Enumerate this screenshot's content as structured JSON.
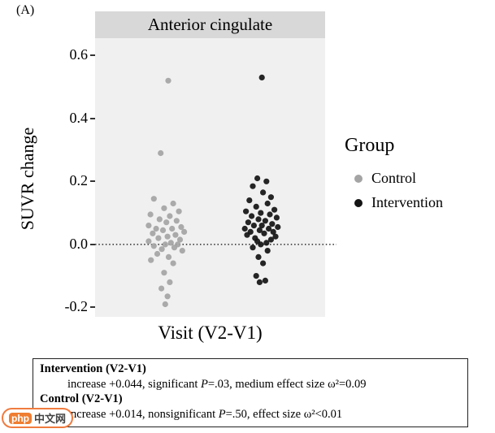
{
  "panel_label": "(A)",
  "chart_data": {
    "type": "scatter",
    "title": "Anterior cingulate",
    "xlabel": "Visit (V2-V1)",
    "ylabel": "SUVR change",
    "ylim": [
      -0.23,
      0.655
    ],
    "yticks": [
      0.6,
      0.4,
      0.2,
      0.0,
      -0.2
    ],
    "reference_line_y": 0,
    "grid": false,
    "legend": {
      "title": "Group",
      "position": "right",
      "entries": [
        {
          "label": "Control",
          "color": "#a4a4a4"
        },
        {
          "label": "Intervention",
          "color": "#141414"
        }
      ]
    },
    "series": [
      {
        "name": "Control",
        "color": "#a4a4a4",
        "x_frac": 0.31,
        "points": [
          [
            0.08,
            0.52
          ],
          [
            -0.25,
            0.29
          ],
          [
            -0.55,
            0.145
          ],
          [
            0.3,
            0.13
          ],
          [
            -0.1,
            0.115
          ],
          [
            0.55,
            0.105
          ],
          [
            -0.7,
            0.095
          ],
          [
            0.15,
            0.09
          ],
          [
            -0.3,
            0.08
          ],
          [
            0.45,
            0.075
          ],
          [
            0.0,
            0.07
          ],
          [
            -0.78,
            0.06
          ],
          [
            0.65,
            0.055
          ],
          [
            -0.45,
            0.05
          ],
          [
            0.25,
            0.05
          ],
          [
            -0.15,
            0.045
          ],
          [
            0.78,
            0.04
          ],
          [
            -0.6,
            0.035
          ],
          [
            0.4,
            0.03
          ],
          [
            0.05,
            0.025
          ],
          [
            -0.35,
            0.02
          ],
          [
            0.6,
            0.015
          ],
          [
            -0.78,
            0.01
          ],
          [
            0.2,
            0.005
          ],
          [
            -0.05,
            0.0
          ],
          [
            0.5,
            0.0
          ],
          [
            -0.55,
            -0.005
          ],
          [
            0.35,
            -0.01
          ],
          [
            -0.2,
            -0.015
          ],
          [
            0.7,
            -0.02
          ],
          [
            -0.4,
            -0.03
          ],
          [
            0.1,
            -0.04
          ],
          [
            -0.68,
            -0.05
          ],
          [
            0.3,
            -0.06
          ],
          [
            -0.1,
            -0.09
          ],
          [
            0.15,
            -0.12
          ],
          [
            -0.22,
            -0.14
          ],
          [
            0.05,
            -0.165
          ],
          [
            -0.05,
            -0.19
          ]
        ]
      },
      {
        "name": "Intervention",
        "color": "#141414",
        "x_frac": 0.72,
        "points": [
          [
            0.05,
            0.53
          ],
          [
            -0.15,
            0.21
          ],
          [
            0.25,
            0.2
          ],
          [
            -0.35,
            0.185
          ],
          [
            0.1,
            0.165
          ],
          [
            0.45,
            0.15
          ],
          [
            -0.5,
            0.14
          ],
          [
            0.3,
            0.13
          ],
          [
            -0.2,
            0.12
          ],
          [
            0.6,
            0.11
          ],
          [
            -0.65,
            0.105
          ],
          [
            0.0,
            0.1
          ],
          [
            0.4,
            0.095
          ],
          [
            -0.4,
            0.09
          ],
          [
            0.7,
            0.085
          ],
          [
            -0.1,
            0.08
          ],
          [
            0.2,
            0.075
          ],
          [
            -0.55,
            0.07
          ],
          [
            0.5,
            0.065
          ],
          [
            -0.3,
            0.06
          ],
          [
            0.05,
            0.06
          ],
          [
            0.75,
            0.055
          ],
          [
            -0.7,
            0.05
          ],
          [
            0.35,
            0.05
          ],
          [
            -0.05,
            0.045
          ],
          [
            0.55,
            0.04
          ],
          [
            -0.45,
            0.04
          ],
          [
            0.15,
            0.035
          ],
          [
            -0.6,
            0.03
          ],
          [
            0.65,
            0.025
          ],
          [
            -0.25,
            0.02
          ],
          [
            0.45,
            0.015
          ],
          [
            -0.15,
            0.01
          ],
          [
            0.25,
            0.005
          ],
          [
            0.0,
            0.0
          ],
          [
            -0.35,
            -0.01
          ],
          [
            0.3,
            -0.02
          ],
          [
            -0.1,
            -0.04
          ],
          [
            0.1,
            -0.06
          ],
          [
            -0.2,
            -0.1
          ],
          [
            0.2,
            -0.115
          ],
          [
            -0.05,
            -0.12
          ]
        ]
      }
    ]
  },
  "stats_box": {
    "items": [
      {
        "header": "Intervention (V2-V1)",
        "before_p": "increase +0.044, significant ",
        "p": "P",
        "after_p": "=.03, medium effect size ω²=0.09"
      },
      {
        "header": "Control (V2-V1)",
        "before_p": "increase +0.014, nonsignificant ",
        "p": "P",
        "after_p": "=.50, effect size ω²<0.01"
      }
    ]
  },
  "watermark": {
    "primary": "php",
    "secondary": "中文网"
  }
}
